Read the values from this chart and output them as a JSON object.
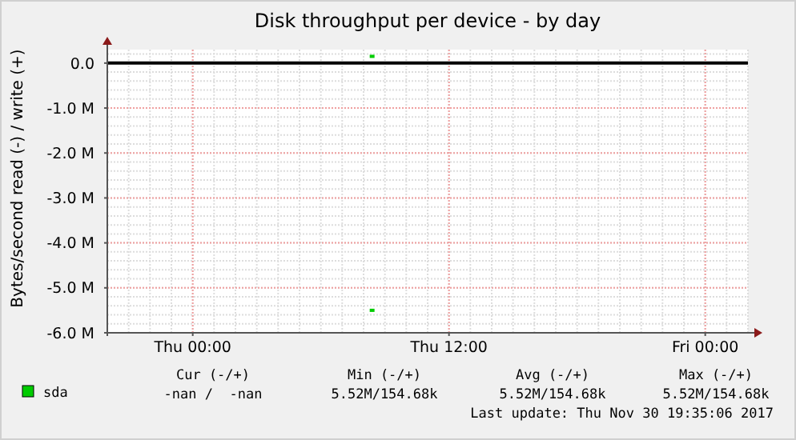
{
  "chart_data": {
    "type": "scatter",
    "title": "Disk throughput per device - by day",
    "ylabel": "Bytes/second read (-) / write (+)",
    "x": [
      "2017-11-30T08:24",
      "2017-11-30T08:24"
    ],
    "series": [
      {
        "name": "sda",
        "color": "#00cc00",
        "values": [
          150000,
          -5500000
        ]
      }
    ],
    "xlim": [
      "2017-11-29T20:00",
      "2017-12-01T02:00"
    ],
    "xticks": [
      {
        "value": "2017-11-30T00:00",
        "label": "Thu 00:00"
      },
      {
        "value": "2017-11-30T12:00",
        "label": "Thu 12:00"
      },
      {
        "value": "2017-12-01T00:00",
        "label": "Fri 00:00"
      }
    ],
    "ylim": [
      -6000000,
      300000
    ],
    "yticks": [
      {
        "value": 0,
        "label": "0.0"
      },
      {
        "value": -1000000,
        "label": "-1.0 M"
      },
      {
        "value": -2000000,
        "label": "-2.0 M"
      },
      {
        "value": -3000000,
        "label": "-3.0 M"
      },
      {
        "value": -4000000,
        "label": "-4.0 M"
      },
      {
        "value": -5000000,
        "label": "-5.0 M"
      },
      {
        "value": -6000000,
        "label": "-6.0 M"
      }
    ],
    "grid": true,
    "marker": "square",
    "legend": "bottom",
    "ref_lines": [
      {
        "axis": "y",
        "value": 0,
        "color": "#000000"
      }
    ],
    "annotations": [
      "Cur (-/+)",
      "Min (-/+)",
      "Avg (-/+)",
      "Max (-/+)",
      "-nan /  -nan",
      "5.52M/154.68k",
      "5.52M/154.68k",
      "5.52M/154.68k",
      "Last update: Thu Nov 30 19:35:06 2017"
    ]
  }
}
